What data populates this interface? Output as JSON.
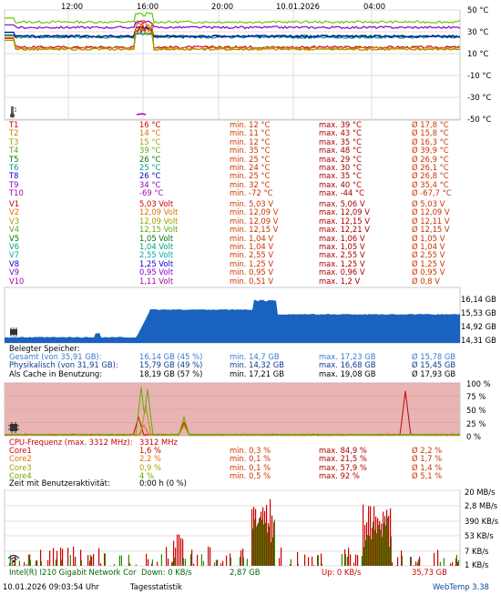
{
  "temperature_chart": {
    "time_labels": [
      "12:00",
      "16:00",
      "20:00",
      "10.01.2026",
      "04:00"
    ],
    "y_labels": [
      "50 °C",
      "30 °C",
      "10 °C",
      "-10 °C",
      "-30 °C",
      "-50 °C"
    ],
    "icon": "thermometer-icon"
  },
  "temperatures": [
    {
      "name": "T1",
      "cur": "16 °C",
      "min": "min. 12 °C",
      "max": "max. 39 °C",
      "avg": "Ø 17,8 °C",
      "color": "#cc0000"
    },
    {
      "name": "T2",
      "cur": "14 °C",
      "min": "min. 11 °C",
      "max": "max. 43 °C",
      "avg": "Ø 15,8 °C",
      "color": "#e07000"
    },
    {
      "name": "T3",
      "cur": "15 °C",
      "min": "min. 12 °C",
      "max": "max. 35 °C",
      "avg": "Ø 16,3 °C",
      "color": "#a0a000"
    },
    {
      "name": "T4",
      "cur": "39 °C",
      "min": "min. 35 °C",
      "max": "max. 48 °C",
      "avg": "Ø 39,9 °C",
      "color": "#66aa00"
    },
    {
      "name": "T5",
      "cur": "26 °C",
      "min": "min. 25 °C",
      "max": "max. 29 °C",
      "avg": "Ø 26,9 °C",
      "color": "#007700"
    },
    {
      "name": "T6",
      "cur": "25 °C",
      "min": "min. 24 °C",
      "max": "max. 30 °C",
      "avg": "Ø 26,1 °C",
      "color": "#00a080"
    },
    {
      "name": "T8",
      "cur": "26 °C",
      "min": "min. 25 °C",
      "max": "max. 35 °C",
      "avg": "Ø 26,8 °C",
      "color": "#0000cc"
    },
    {
      "name": "T9",
      "cur": "34 °C",
      "min": "min. 32 °C",
      "max": "max. 40 °C",
      "avg": "Ø 35,4 °C",
      "color": "#8800cc"
    },
    {
      "name": "T10",
      "cur": "-69 °C",
      "min": "min. -72 °C",
      "max": "max. -44 °C",
      "avg": "Ø -67,7 °C",
      "color": "#aa00aa"
    }
  ],
  "voltages": [
    {
      "name": "V1",
      "cur": "5,03 Volt",
      "min": "min. 5,03 V",
      "max": "max. 5,06 V",
      "avg": "Ø 5,03 V",
      "color": "#cc0000"
    },
    {
      "name": "V2",
      "cur": "12,09 Volt",
      "min": "min. 12,09 V",
      "max": "max. 12,09 V",
      "avg": "Ø 12,09 V",
      "color": "#e07000"
    },
    {
      "name": "V3",
      "cur": "12,09 Volt",
      "min": "min. 12,09 V",
      "max": "max. 12,15 V",
      "avg": "Ø 12,11 V",
      "color": "#a0a000"
    },
    {
      "name": "V4",
      "cur": "12,15 Volt",
      "min": "min. 12,15 V",
      "max": "max. 12,21 V",
      "avg": "Ø 12,15 V",
      "color": "#66aa00"
    },
    {
      "name": "V5",
      "cur": "1,05 Volt",
      "min": "min. 1,04 V",
      "max": "max. 1,06 V",
      "avg": "Ø 1,05 V",
      "color": "#007700"
    },
    {
      "name": "V6",
      "cur": "1,04 Volt",
      "min": "min. 1,04 V",
      "max": "max. 1,05 V",
      "avg": "Ø 1,04 V",
      "color": "#00a080"
    },
    {
      "name": "V7",
      "cur": "2,55 Volt",
      "min": "min. 2,55 V",
      "max": "max. 2,55 V",
      "avg": "Ø 2,55 V",
      "color": "#00aaaa"
    },
    {
      "name": "V8",
      "cur": "1,25 Volt",
      "min": "min. 1,25 V",
      "max": "max. 1,25 V",
      "avg": "Ø 1,25 V",
      "color": "#0000cc"
    },
    {
      "name": "V9",
      "cur": "0,95 Volt",
      "min": "min. 0,95 V",
      "max": "max. 0,96 V",
      "avg": "Ø 0,95 V",
      "color": "#8800cc"
    },
    {
      "name": "V10",
      "cur": "1,11 Volt",
      "min": "min. 0,51 V",
      "max": "max. 1,2 V",
      "avg": "Ø 0,8 V",
      "color": "#aa00aa"
    }
  ],
  "memory_chart": {
    "y_labels": [
      "16,14 GB",
      "15,53 GB",
      "14,92 GB",
      "14,31 GB"
    ],
    "icon": "memory-chip-icon",
    "fill_color": "#1a62c0"
  },
  "memory": {
    "heading": "Belegter Speicher:",
    "rows": [
      {
        "name": "Gesamt (von 35,91 GB):",
        "cur": "16,14 GB (45 %)",
        "min": "min. 14,7 GB",
        "max": "max. 17,23 GB",
        "avg": "Ø 15,78 GB",
        "color": "#3a7ad0"
      },
      {
        "name": "Physikalisch (von 31,91 GB):",
        "cur": "15,79 GB (49 %)",
        "min": "min. 14,32 GB",
        "max": "max. 16,68 GB",
        "avg": "Ø 15,45 GB",
        "color": "#0a3a90"
      },
      {
        "name": "Als Cache in Benutzung:",
        "cur": "18,19 GB (57 %)",
        "min": "min. 17,21 GB",
        "max": "max. 19,08 GB",
        "avg": "Ø 17,93 GB",
        "color": "#000000"
      }
    ]
  },
  "cpu_chart": {
    "y_labels": [
      "100 %",
      "75 %",
      "50 %",
      "25 %",
      "0 %"
    ],
    "icon": "cpu-icon",
    "bg_color": "#e8b4b4"
  },
  "cpu": {
    "freq_label": "CPU-Frequenz (max. 3312 MHz):",
    "freq_value": "3312 MHz",
    "rows": [
      {
        "name": "Core1",
        "cur": "1,6 %",
        "min": "min. 0,3 %",
        "max": "max. 84,9 %",
        "avg": "Ø 2,2 %",
        "color": "#cc0000"
      },
      {
        "name": "Core2",
        "cur": "2,2 %",
        "min": "min. 0,1 %",
        "max": "max. 21,5 %",
        "avg": "Ø 1,7 %",
        "color": "#e07000"
      },
      {
        "name": "Core3",
        "cur": "0,9 %",
        "min": "min. 0,1 %",
        "max": "max. 57,9 %",
        "avg": "Ø 1,4 %",
        "color": "#a0a000"
      },
      {
        "name": "Core4",
        "cur": "4 %",
        "min": "min. 0,5 %",
        "max": "max. 92 %",
        "avg": "Ø 5,1 %",
        "color": "#66aa00"
      }
    ],
    "activity_label": "Zeit mit Benutzeraktivität:",
    "activity_value": "0:00 h (0 %)"
  },
  "network_chart": {
    "y_labels": [
      "20 MB/s",
      "2,8 MB/s",
      "390 KB/s",
      "53 KB/s",
      "7 KB/s",
      "1 KB/s"
    ],
    "icon": "network-icon"
  },
  "network": {
    "adapter": "Intel(R) I210 Gigabit Network Cor",
    "down_label": "Down: 0 KB/s",
    "down_total": "2,87 GB",
    "up_label": "Up: 0 KB/s",
    "up_total": "35,73 GB"
  },
  "footer": {
    "datetime": "10.01.2026 09:03:54 Uhr",
    "stats_link": "Tagesstatistik",
    "brand": "WebTemp 3.38"
  }
}
